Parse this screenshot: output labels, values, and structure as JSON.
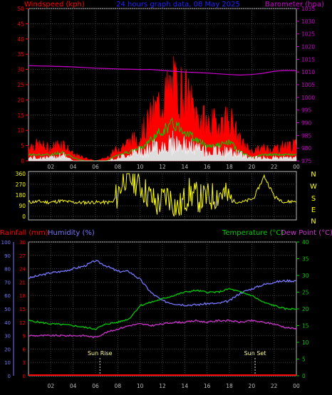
{
  "chart_data": [
    {
      "type": "line",
      "panel": "wind-baro",
      "title": "24 hours graph data, 08 May 2025",
      "left_label": "Windspeed (kph)",
      "right_label": "Barometer (hpa)",
      "left_ylim": [
        0,
        50
      ],
      "left_ticks": [
        "0",
        "5",
        "10",
        "15",
        "20",
        "25",
        "30",
        "35",
        "40",
        "45",
        "50"
      ],
      "right_ylim": [
        975,
        1035
      ],
      "right_ticks": [
        "975",
        "980",
        "985",
        "990",
        "995",
        "1000",
        "1005",
        "1010",
        "1015",
        "1020",
        "1025",
        "1030",
        "1035"
      ],
      "xlim": [
        0,
        24
      ],
      "x_ticks": [
        "02",
        "04",
        "06",
        "08",
        "10",
        "12",
        "14",
        "16",
        "18",
        "20",
        "22",
        "00"
      ],
      "grid": true,
      "colors": {
        "gust": "#ff0000",
        "average": "#00cc00",
        "wind": "#ffffff",
        "barometer": "#cc00cc",
        "left_axis": "#ff0000",
        "right_axis": "#cc00cc",
        "grid": "#444444"
      },
      "series": [
        {
          "name": "",
          "color": "#cc00cc",
          "axis": "right",
          "x": [
            0,
            2,
            4,
            6,
            8,
            10,
            11,
            12,
            13,
            14,
            15,
            16,
            17,
            18,
            19,
            20,
            21,
            22,
            23,
            24
          ],
          "values": [
            1012.5,
            1012.3,
            1012.0,
            1011.5,
            1011.2,
            1011.0,
            1011.0,
            1010.6,
            1010.3,
            1010.0,
            1009.8,
            1009.6,
            1009.3,
            1009.0,
            1008.8,
            1009.0,
            1009.5,
            1010.3,
            1010.6,
            1010.5
          ]
        }
      ],
      "wind_profile": {
        "x": [
          0,
          1,
          2,
          3,
          4,
          5,
          6,
          7,
          8,
          9,
          10,
          11,
          12,
          13,
          14,
          15,
          16,
          17,
          18,
          19,
          20,
          21,
          22,
          23,
          24
        ],
        "gust": [
          5,
          5,
          4,
          6,
          2,
          1,
          0,
          1,
          4,
          6,
          8,
          14,
          20,
          24,
          22,
          15,
          12,
          12,
          14,
          6,
          3,
          4,
          4,
          5,
          5
        ],
        "average": [
          2,
          2,
          2,
          3,
          1,
          0,
          0,
          0,
          2,
          3,
          4,
          7,
          10,
          12,
          10,
          7,
          5,
          5,
          6,
          3,
          1,
          2,
          2,
          2,
          2
        ],
        "wind": [
          1,
          1,
          1,
          2,
          0,
          0,
          0,
          0,
          1,
          2,
          3,
          4,
          5,
          6,
          5,
          4,
          3,
          3,
          3,
          2,
          1,
          1,
          1,
          1,
          1
        ]
      }
    },
    {
      "type": "line",
      "panel": "direction",
      "left_ticks": [
        "0",
        "90",
        "180",
        "270",
        "360"
      ],
      "ylim": [
        0,
        360
      ],
      "compass": [
        "N",
        "W",
        "S",
        "E",
        "N"
      ],
      "xlim": [
        0,
        24
      ],
      "colors": {
        "series": "#ffff00"
      },
      "series": [
        {
          "name": "",
          "x": [
            0,
            1,
            2,
            3,
            4,
            5,
            6,
            7,
            7.5,
            8,
            9,
            10,
            11,
            12,
            13,
            14,
            15,
            16,
            17,
            18,
            19,
            20,
            21,
            22,
            23,
            24
          ],
          "values": [
            120,
            125,
            118,
            130,
            120,
            115,
            120,
            118,
            120,
            340,
            300,
            200,
            100,
            180,
            60,
            200,
            150,
            160,
            200,
            130,
            120,
            150,
            340,
            160,
            120,
            130
          ]
        }
      ]
    },
    {
      "type": "line",
      "panel": "temp-humidity",
      "labels": {
        "rainfall": "Rainfall (mm)",
        "humidity": "Humidity (%)",
        "temperature": "Temperature (°C)",
        "dewpoint": "Dew Point (°C)"
      },
      "humidity_ticks": [
        "0",
        "10",
        "20",
        "30",
        "40",
        "50",
        "60",
        "70",
        "80",
        "90",
        "100"
      ],
      "rain_ticks": [
        "0",
        "3",
        "6",
        "9",
        "12",
        "15",
        "18",
        "21",
        "24",
        "27",
        "30"
      ],
      "temp_ticks": [
        "0",
        "5",
        "10",
        "15",
        "20",
        "25",
        "30",
        "35",
        "40"
      ],
      "humidity_ylim": [
        0,
        100
      ],
      "temp_ylim": [
        0,
        40
      ],
      "xlim": [
        0,
        24
      ],
      "x_ticks": [
        "02",
        "04",
        "06",
        "08",
        "10",
        "12",
        "14",
        "16",
        "18",
        "20",
        "22",
        "00"
      ],
      "events": [
        {
          "x": 6.4,
          "label": "Sun Rise"
        },
        {
          "x": 20.3,
          "label": "Sun Set"
        }
      ],
      "colors": {
        "humidity": "#7777ff",
        "temperature": "#00cc00",
        "dewpoint": "#cc33cc",
        "rain": "#ff0000",
        "rain_axis": "#ff0000",
        "humidity_axis": "#7777ff",
        "temp_axis": "#00cc00"
      },
      "series": [
        {
          "name": "",
          "color": "#7777ff",
          "axis": "humidity",
          "x": [
            0,
            1,
            2,
            3,
            4,
            5,
            6,
            7,
            8,
            9,
            10,
            11,
            12,
            13,
            14,
            15,
            16,
            17,
            18,
            19,
            20,
            21,
            22,
            23,
            24
          ],
          "values": [
            73,
            75,
            77,
            78,
            80,
            82,
            86,
            82,
            78,
            78,
            72,
            62,
            56,
            54,
            53,
            53,
            54,
            54,
            56,
            62,
            65,
            68,
            70,
            71,
            71
          ]
        },
        {
          "name": "",
          "color": "#00cc00",
          "axis": "temp",
          "x": [
            0,
            1,
            2,
            3,
            4,
            5,
            6,
            7,
            8,
            9,
            10,
            11,
            12,
            13,
            14,
            15,
            16,
            17,
            18,
            19,
            20,
            21,
            22,
            23,
            24
          ],
          "values": [
            16.5,
            16,
            15.5,
            15.3,
            15,
            14.5,
            14,
            15.5,
            16,
            17,
            21,
            22,
            23,
            24,
            25,
            25.5,
            25,
            25,
            26,
            25,
            24,
            22,
            21,
            20,
            20
          ]
        },
        {
          "name": "",
          "color": "#cc33cc",
          "axis": "temp",
          "x": [
            0,
            1,
            2,
            3,
            4,
            5,
            6,
            7,
            8,
            9,
            10,
            11,
            12,
            13,
            14,
            15,
            16,
            17,
            18,
            19,
            20,
            21,
            22,
            23,
            24
          ],
          "values": [
            12,
            12,
            12,
            12,
            12,
            12,
            11.5,
            13,
            14,
            15,
            15.5,
            15,
            15.5,
            16,
            16,
            16.5,
            16,
            16.5,
            16.5,
            16,
            16.5,
            16,
            15.5,
            14.5,
            14
          ]
        },
        {
          "name": "",
          "color": "#ff0000",
          "axis": "rain",
          "x": [
            0,
            24
          ],
          "values": [
            0,
            0
          ]
        }
      ]
    }
  ]
}
